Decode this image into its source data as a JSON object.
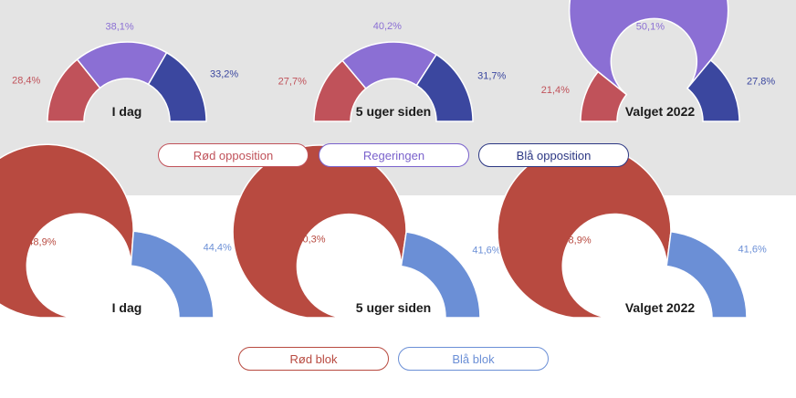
{
  "colors": {
    "top_red": "#c0525a",
    "top_purple": "#8b6fd4",
    "top_blue": "#3b479f",
    "bottom_red": "#b84a40",
    "bottom_blue": "#6b8fd6",
    "top_background": "#e4e4e4"
  },
  "chart_data": [
    {
      "type": "pie",
      "variant": "half-donut",
      "group": "opposition-regering",
      "title": "I dag",
      "labels": [
        "Rød opposition",
        "Regeringen",
        "Blå opposition"
      ],
      "values": [
        28.4,
        38.1,
        33.2
      ],
      "value_labels": [
        "28,4%",
        "38,1%",
        "33,2%"
      ]
    },
    {
      "type": "pie",
      "variant": "half-donut",
      "group": "opposition-regering",
      "title": "5 uger siden",
      "labels": [
        "Rød opposition",
        "Regeringen",
        "Blå opposition"
      ],
      "values": [
        27.7,
        40.2,
        31.7
      ],
      "value_labels": [
        "27,7%",
        "40,2%",
        "31,7%"
      ]
    },
    {
      "type": "pie",
      "variant": "half-donut",
      "group": "opposition-regering",
      "title": "Valget 2022",
      "labels": [
        "Rød opposition",
        "Regeringen",
        "Blå opposition"
      ],
      "values": [
        21.4,
        50.1,
        27.8
      ],
      "value_labels": [
        "21,4%",
        "50,1%",
        "27,8%"
      ]
    },
    {
      "type": "pie",
      "variant": "half-donut",
      "group": "blokke",
      "title": "I dag",
      "labels": [
        "Rød blok",
        "Blå blok"
      ],
      "values": [
        48.9,
        44.4
      ],
      "value_labels": [
        "48,9%",
        "44,4%"
      ]
    },
    {
      "type": "pie",
      "variant": "half-donut",
      "group": "blokke",
      "title": "5 uger siden",
      "labels": [
        "Rød blok",
        "Blå blok"
      ],
      "values": [
        50.3,
        41.6
      ],
      "value_labels": [
        "50,3%",
        "41,6%"
      ]
    },
    {
      "type": "pie",
      "variant": "half-donut",
      "group": "blokke",
      "title": "Valget 2022",
      "labels": [
        "Rød blok",
        "Blå blok"
      ],
      "values": [
        48.9,
        41.6
      ],
      "value_labels": [
        "48,9%",
        "41,6%"
      ]
    }
  ],
  "legend_top": {
    "red_label": "Rød opposition",
    "purple_label": "Regeringen",
    "blue_label": "Blå opposition"
  },
  "legend_bottom": {
    "red_label": "Rød blok",
    "blue_label": "Blå blok"
  }
}
